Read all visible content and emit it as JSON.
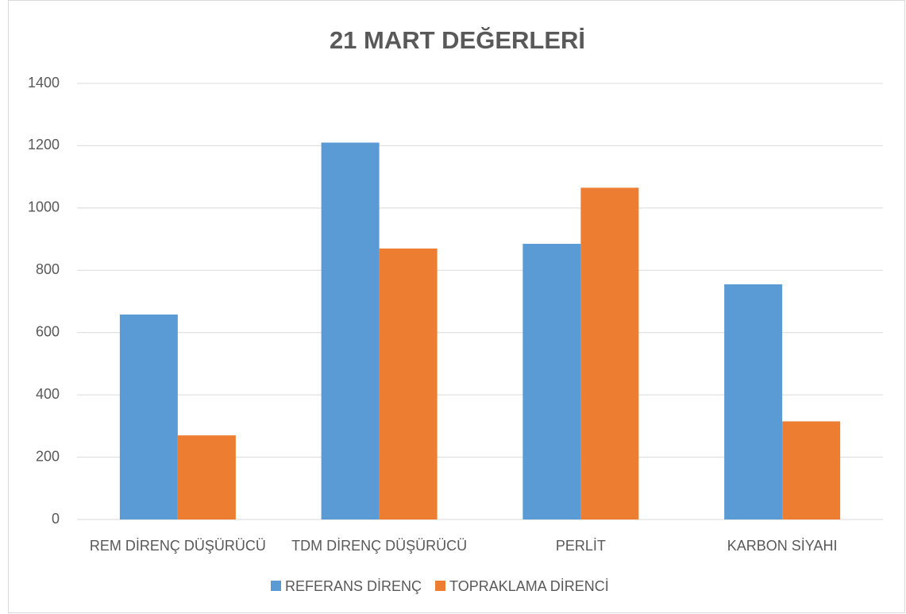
{
  "chart_data": {
    "type": "bar",
    "title": "21 MART DEĞERLERİ",
    "categories": [
      "REM DİRENÇ DÜŞÜRÜCÜ",
      "TDM DİRENÇ DÜŞÜRÜCÜ",
      "PERLİT",
      "KARBON SİYAHI"
    ],
    "series": [
      {
        "name": "REFERANS DİRENÇ",
        "color": "#5b9bd5",
        "values": [
          658,
          1210,
          885,
          755
        ]
      },
      {
        "name": "TOPRAKLAMA DİRENCİ",
        "color": "#ed7d31",
        "values": [
          270,
          870,
          1065,
          315
        ]
      }
    ],
    "ylim": [
      0,
      1400
    ],
    "yticks": [
      0,
      200,
      400,
      600,
      800,
      1000,
      1200,
      1400
    ],
    "grid": true,
    "legend": "bottom"
  }
}
